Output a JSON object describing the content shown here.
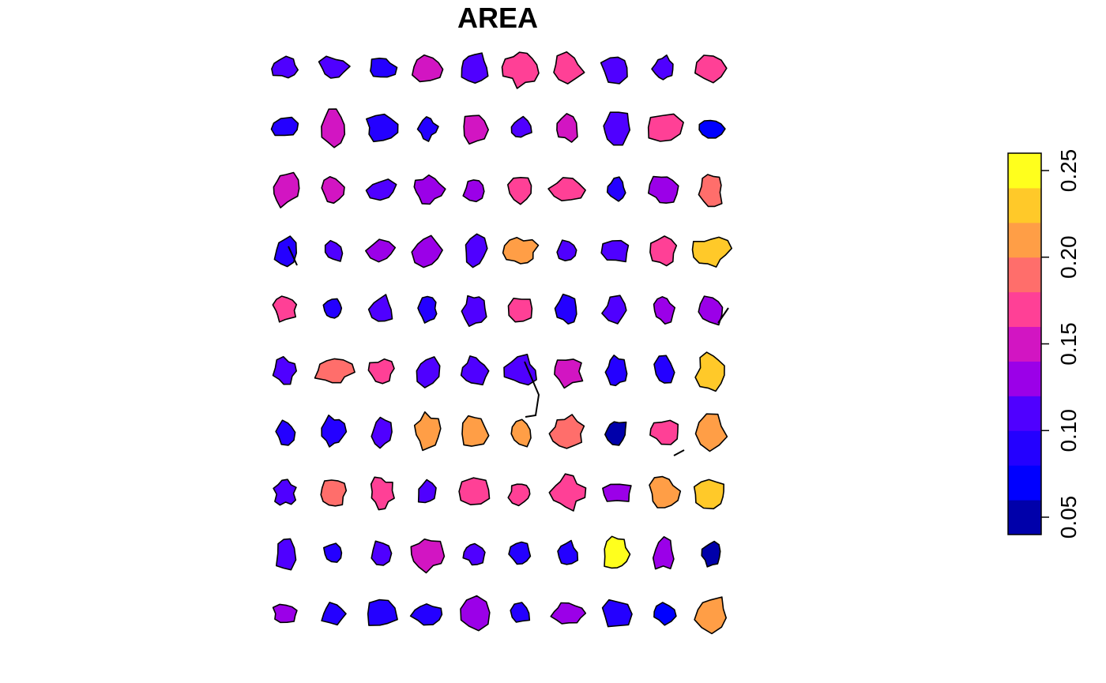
{
  "title": "AREA",
  "legend": {
    "tick_labels": [
      "0.05",
      "0.10",
      "0.15",
      "0.20",
      "0.25"
    ],
    "tick_values": [
      0.05,
      0.1,
      0.15,
      0.2,
      0.25
    ],
    "range": [
      0.04,
      0.26
    ],
    "bin_colors": [
      "#0000AA",
      "#0000FF",
      "#2400FF",
      "#4F00FF",
      "#9B00E8",
      "#D215C2",
      "#FF4096",
      "#FF6E6B",
      "#FF9E46",
      "#FFC929",
      "#FFFF1D"
    ]
  },
  "chart_data": {
    "type": "choropleth",
    "variable": "AREA",
    "grid": {
      "rows": 10,
      "cols": 10
    },
    "areas": [
      [
        0.11,
        0.11,
        0.08,
        0.15,
        0.1,
        0.17,
        0.16,
        0.11,
        0.11,
        0.17
      ],
      [
        0.09,
        0.15,
        0.09,
        0.08,
        0.15,
        0.11,
        0.15,
        0.1,
        0.17,
        0.07
      ],
      [
        0.15,
        0.15,
        0.1,
        0.13,
        0.13,
        0.17,
        0.17,
        0.09,
        0.13,
        0.19
      ],
      [
        0.09,
        0.1,
        0.13,
        0.13,
        0.1,
        0.21,
        0.11,
        0.1,
        0.17,
        0.23
      ],
      [
        0.17,
        0.09,
        0.1,
        0.09,
        0.1,
        0.16,
        0.09,
        0.1,
        0.13,
        0.13
      ],
      [
        0.1,
        0.19,
        0.17,
        0.11,
        0.11,
        0.1,
        0.14,
        0.09,
        0.09,
        0.23
      ],
      [
        0.09,
        0.09,
        0.1,
        0.21,
        0.21,
        0.21,
        0.19,
        0.06,
        0.17,
        0.21
      ],
      [
        0.1,
        0.19,
        0.17,
        0.11,
        0.17,
        0.16,
        0.16,
        0.13,
        0.21,
        0.23
      ],
      [
        0.11,
        0.09,
        0.11,
        0.15,
        0.1,
        0.08,
        0.09,
        0.25,
        0.13,
        0.06
      ],
      [
        0.13,
        0.09,
        0.09,
        0.09,
        0.13,
        0.08,
        0.13,
        0.09,
        0.07,
        0.21
      ]
    ]
  }
}
